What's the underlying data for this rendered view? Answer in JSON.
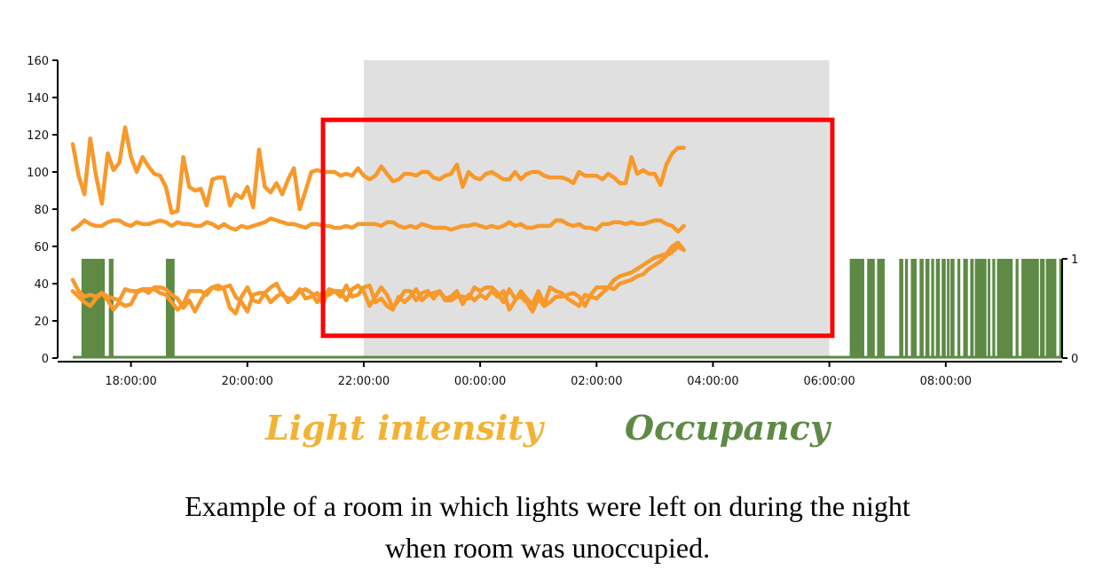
{
  "legend": {
    "light": "Light intensity",
    "occupancy": "Occupancy"
  },
  "caption": {
    "line1": "Example of a room in which lights were left on during the night",
    "line2": "when room was unoccupied."
  },
  "colors": {
    "light": "#f7992b",
    "occupancy": "#5e8a45",
    "night_shade": "#e0e0e0",
    "highlight": "#ff0000",
    "legend_light": "#f2b335"
  },
  "chart_data": {
    "type": "line",
    "x_unit": "hours after 17:00",
    "xlim": [
      0,
      17.0
    ],
    "ylim": [
      0,
      160
    ],
    "ylim_right": [
      0,
      1
    ],
    "y_ticks": [
      0,
      20,
      40,
      60,
      80,
      100,
      120,
      140,
      160
    ],
    "y_right_ticks": [
      0,
      1
    ],
    "x_ticks": [
      {
        "x": 1,
        "label": "18:00:00"
      },
      {
        "x": 3,
        "label": "20:00:00"
      },
      {
        "x": 5,
        "label": "22:00:00"
      },
      {
        "x": 7,
        "label": "00:00:00"
      },
      {
        "x": 9,
        "label": "02:00:00"
      },
      {
        "x": 11,
        "label": "04:00:00"
      },
      {
        "x": 13,
        "label": "06:00:00"
      },
      {
        "x": 15,
        "label": "08:00:00"
      }
    ],
    "shaded_region": {
      "x0": 5,
      "x1": 13
    },
    "highlight_box": {
      "x0": 4.3,
      "x1": 13.05,
      "y0": 12,
      "y1": 128
    },
    "series": [
      {
        "axis": "left",
        "start": 0,
        "step": 0.1,
        "values": [
          115,
          98,
          88,
          118,
          98,
          83,
          110,
          101,
          105,
          124,
          108,
          100,
          108,
          103,
          99,
          98,
          92,
          78,
          79,
          108,
          92,
          90,
          91,
          82,
          96,
          97,
          97,
          82,
          88,
          86,
          92,
          81,
          112,
          92,
          89,
          94,
          88,
          96,
          102,
          80,
          90,
          100,
          101,
          100,
          100,
          100,
          98,
          99,
          98,
          102,
          98,
          96,
          98,
          103,
          99,
          95,
          96,
          99,
          99,
          98,
          100,
          100,
          97,
          96,
          98,
          99,
          104,
          92,
          100,
          97,
          96,
          99,
          100,
          98,
          96,
          96,
          100,
          96,
          99,
          100,
          100,
          98,
          97,
          97,
          97,
          96,
          94,
          100,
          98,
          98,
          98,
          96,
          99,
          97,
          94,
          94,
          108,
          99,
          101,
          99,
          99,
          93,
          104,
          110,
          113,
          113
        ]
      },
      {
        "axis": "left",
        "start": 0,
        "step": 0.1,
        "values": [
          69,
          71,
          74,
          72,
          71,
          71,
          73,
          74,
          74,
          72,
          71,
          73,
          72,
          72,
          73,
          74,
          73,
          71,
          73,
          72,
          72,
          71,
          71,
          73,
          72,
          70,
          72,
          70,
          69,
          71,
          70,
          71,
          72,
          73,
          75,
          74,
          73,
          72,
          72,
          71,
          70,
          72,
          72,
          71,
          71,
          70,
          70,
          71,
          70,
          72,
          72,
          72,
          72,
          71,
          73,
          73,
          71,
          70,
          71,
          70,
          72,
          71,
          70,
          70,
          70,
          69,
          70,
          71,
          71,
          72,
          71,
          70,
          71,
          70,
          71,
          73,
          71,
          72,
          70,
          70,
          71,
          71,
          71,
          74,
          74,
          72,
          71,
          72,
          70,
          70,
          69,
          72,
          72,
          73,
          73,
          72,
          73,
          72,
          72,
          73,
          74,
          74,
          72,
          71,
          68,
          71
        ]
      },
      {
        "axis": "left",
        "start": 0,
        "step": 0.1,
        "values": [
          42,
          36,
          33,
          34,
          33,
          35,
          33,
          32,
          31,
          37,
          36,
          36,
          37,
          37,
          37,
          35,
          34,
          30,
          26,
          29,
          36,
          36,
          36,
          34,
          38,
          39,
          37,
          27,
          24,
          33,
          38,
          31,
          30,
          35,
          38,
          40,
          34,
          32,
          32,
          36,
          37,
          35,
          30,
          36,
          34,
          36,
          36,
          31,
          37,
          39,
          36,
          28,
          33,
          38,
          34,
          27,
          31,
          36,
          36,
          31,
          35,
          36,
          32,
          36,
          32,
          33,
          36,
          29,
          34,
          31,
          34,
          32,
          36,
          33,
          36,
          26,
          31,
          36,
          32,
          29,
          36,
          29,
          38,
          36,
          35,
          32,
          30,
          28,
          34,
          33,
          32,
          35,
          38,
          37,
          40,
          41,
          42,
          44,
          45,
          48,
          50,
          52,
          55,
          57,
          60,
          58
        ]
      },
      {
        "axis": "left",
        "start": 0,
        "step": 0.1,
        "values": [
          36,
          33,
          30,
          28,
          32,
          35,
          31,
          26,
          30,
          28,
          29,
          35,
          37,
          35,
          38,
          38,
          37,
          34,
          32,
          27,
          31,
          25,
          31,
          36,
          38,
          37,
          38,
          39,
          33,
          30,
          25,
          34,
          35,
          35,
          30,
          33,
          35,
          30,
          33,
          37,
          32,
          33,
          35,
          29,
          37,
          36,
          33,
          39,
          33,
          34,
          38,
          39,
          30,
          32,
          28,
          26,
          33,
          30,
          33,
          37,
          31,
          34,
          35,
          36,
          31,
          31,
          33,
          33,
          32,
          38,
          36,
          38,
          38,
          35,
          30,
          37,
          32,
          33,
          30,
          25,
          32,
          28,
          30,
          33,
          33,
          34,
          35,
          33,
          28,
          34,
          38,
          38,
          38,
          42,
          44,
          45,
          46,
          48,
          50,
          52,
          54,
          55,
          56,
          60,
          62,
          58
        ]
      }
    ],
    "occupancy": {
      "axis": "right",
      "segments": [
        [
          0.15,
          0.55
        ],
        [
          0.62,
          0.7
        ],
        [
          1.6,
          1.75
        ],
        [
          13.35,
          13.6
        ],
        [
          13.65,
          13.78
        ],
        [
          13.82,
          13.95
        ],
        [
          14.2,
          14.27
        ],
        [
          14.3,
          14.35
        ],
        [
          14.4,
          14.5
        ],
        [
          14.55,
          14.62
        ],
        [
          14.65,
          14.72
        ],
        [
          14.75,
          14.8
        ],
        [
          14.83,
          14.9
        ],
        [
          14.93,
          15.0
        ],
        [
          15.02,
          15.05
        ],
        [
          15.08,
          15.15
        ],
        [
          15.2,
          15.25
        ],
        [
          15.3,
          15.38
        ],
        [
          15.42,
          15.48
        ],
        [
          15.5,
          15.7
        ],
        [
          15.72,
          15.75
        ],
        [
          15.8,
          15.85
        ],
        [
          15.88,
          16.15
        ],
        [
          16.2,
          16.25
        ],
        [
          16.3,
          16.6
        ],
        [
          16.62,
          16.7
        ],
        [
          16.72,
          16.9
        ],
        [
          16.95,
          17.0
        ]
      ]
    }
  }
}
